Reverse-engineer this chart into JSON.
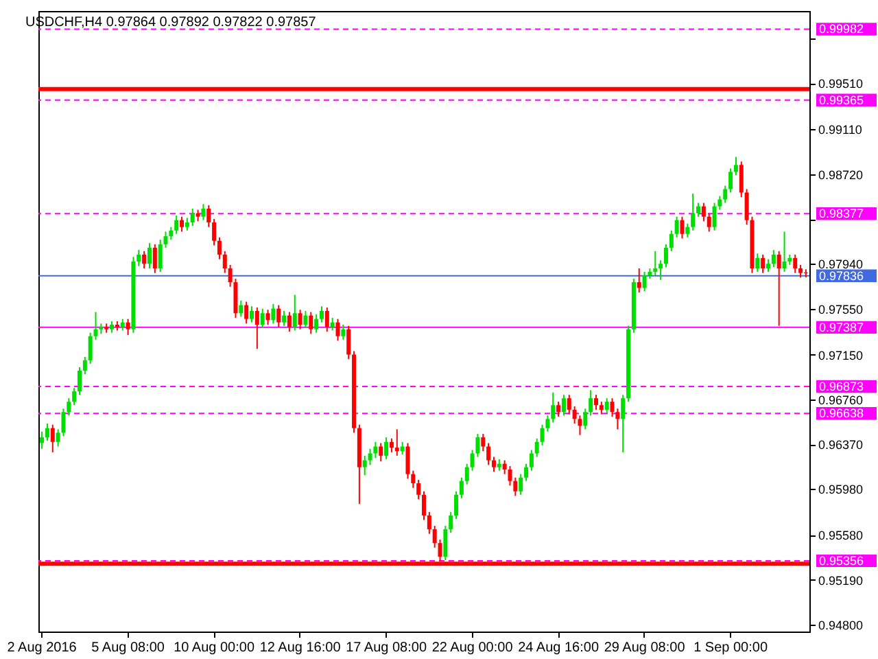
{
  "chart_data": {
    "type": "candlestick",
    "title": "USDCHF,H4 0.97864 0.97892 0.97822 0.97857",
    "categories": [
      "2 Aug 2016",
      null,
      null,
      null,
      null,
      null,
      null,
      null,
      null,
      null,
      null,
      null,
      null,
      null,
      null,
      null,
      "5 Aug 08:00",
      null,
      null,
      null,
      null,
      null,
      null,
      null,
      null,
      null,
      null,
      null,
      null,
      null,
      null,
      null,
      "10 Aug 00:00",
      null,
      null,
      null,
      null,
      null,
      null,
      null,
      null,
      null,
      null,
      null,
      null,
      null,
      null,
      null,
      "12 Aug 16:00",
      null,
      null,
      null,
      null,
      null,
      null,
      null,
      null,
      null,
      null,
      null,
      null,
      null,
      null,
      null,
      "17 Aug 08:00",
      null,
      null,
      null,
      null,
      null,
      null,
      null,
      null,
      null,
      null,
      null,
      null,
      null,
      null,
      null,
      "22 Aug 00:00",
      null,
      null,
      null,
      null,
      null,
      null,
      null,
      null,
      null,
      null,
      null,
      null,
      null,
      null,
      null,
      "24 Aug 16:00",
      null,
      null,
      null,
      null,
      null,
      null,
      null,
      null,
      null,
      null,
      null,
      null,
      null,
      null,
      null,
      "29 Aug 08:00",
      null,
      null,
      null,
      null,
      null,
      null,
      null,
      null,
      null,
      null,
      null,
      null,
      null,
      null,
      null,
      "1 Sep 00:00",
      null,
      null,
      null,
      null,
      null,
      null,
      null,
      null,
      null,
      null,
      null,
      null,
      null,
      null
    ],
    "ohlc": [
      [
        0.9638,
        0.9648,
        0.9633,
        0.9643
      ],
      [
        0.9643,
        0.9655,
        0.964,
        0.9651
      ],
      [
        0.9651,
        0.9654,
        0.963,
        0.9639
      ],
      [
        0.9639,
        0.965,
        0.9635,
        0.9647
      ],
      [
        0.9647,
        0.9668,
        0.9644,
        0.9665
      ],
      [
        0.9665,
        0.9677,
        0.9662,
        0.9674
      ],
      [
        0.9674,
        0.9686,
        0.9671,
        0.9683
      ],
      [
        0.9683,
        0.9704,
        0.968,
        0.9701
      ],
      [
        0.9701,
        0.9713,
        0.9698,
        0.971
      ],
      [
        0.971,
        0.9734,
        0.9707,
        0.9731
      ],
      [
        0.9731,
        0.9752,
        0.9728,
        0.9737
      ],
      [
        0.9737,
        0.9742,
        0.9733,
        0.9739
      ],
      [
        0.9739,
        0.9742,
        0.9734,
        0.9737
      ],
      [
        0.9737,
        0.9744,
        0.9734,
        0.9741
      ],
      [
        0.9741,
        0.9744,
        0.9736,
        0.9739
      ],
      [
        0.9739,
        0.9746,
        0.9736,
        0.9743
      ],
      [
        0.9743,
        0.9746,
        0.9732,
        0.9737
      ],
      [
        0.9737,
        0.98,
        0.9734,
        0.9796
      ],
      [
        0.9796,
        0.9806,
        0.9792,
        0.9802
      ],
      [
        0.9802,
        0.9805,
        0.979,
        0.9794
      ],
      [
        0.9794,
        0.9812,
        0.979,
        0.9808
      ],
      [
        0.9808,
        0.9811,
        0.9786,
        0.979
      ],
      [
        0.979,
        0.9815,
        0.9787,
        0.9811
      ],
      [
        0.9811,
        0.9822,
        0.9808,
        0.9818
      ],
      [
        0.9818,
        0.9826,
        0.9815,
        0.9823
      ],
      [
        0.9823,
        0.9836,
        0.982,
        0.9832
      ],
      [
        0.9832,
        0.9835,
        0.9822,
        0.9826
      ],
      [
        0.9826,
        0.9834,
        0.9823,
        0.983
      ],
      [
        0.983,
        0.9842,
        0.9827,
        0.9838
      ],
      [
        0.9838,
        0.9841,
        0.9831,
        0.9835
      ],
      [
        0.9835,
        0.9846,
        0.9832,
        0.9842
      ],
      [
        0.9842,
        0.9845,
        0.9826,
        0.983
      ],
      [
        0.983,
        0.9833,
        0.981,
        0.9814
      ],
      [
        0.9814,
        0.9817,
        0.9798,
        0.9802
      ],
      [
        0.9802,
        0.9805,
        0.9786,
        0.979
      ],
      [
        0.979,
        0.9793,
        0.9774,
        0.9778
      ],
      [
        0.9778,
        0.9781,
        0.9747,
        0.9751
      ],
      [
        0.9751,
        0.9762,
        0.9748,
        0.9758
      ],
      [
        0.9758,
        0.9761,
        0.9742,
        0.9746
      ],
      [
        0.9746,
        0.9757,
        0.9743,
        0.9753
      ],
      [
        0.9753,
        0.9756,
        0.972,
        0.9741
      ],
      [
        0.9741,
        0.9755,
        0.9738,
        0.9751
      ],
      [
        0.9751,
        0.9754,
        0.9741,
        0.9745
      ],
      [
        0.9745,
        0.9759,
        0.9742,
        0.9755
      ],
      [
        0.9755,
        0.9758,
        0.9739,
        0.9743
      ],
      [
        0.9743,
        0.9753,
        0.974,
        0.9749
      ],
      [
        0.9749,
        0.9752,
        0.9735,
        0.9739
      ],
      [
        0.9739,
        0.9767,
        0.9736,
        0.9751
      ],
      [
        0.9751,
        0.9754,
        0.9737,
        0.9741
      ],
      [
        0.9741,
        0.9753,
        0.9738,
        0.9749
      ],
      [
        0.9749,
        0.9752,
        0.9733,
        0.9737
      ],
      [
        0.9737,
        0.975,
        0.9734,
        0.9746
      ],
      [
        0.9746,
        0.9757,
        0.9743,
        0.9753
      ],
      [
        0.9753,
        0.9756,
        0.9735,
        0.9739
      ],
      [
        0.9739,
        0.9747,
        0.9736,
        0.9743
      ],
      [
        0.9743,
        0.9746,
        0.9727,
        0.9731
      ],
      [
        0.9731,
        0.9741,
        0.9728,
        0.9737
      ],
      [
        0.9737,
        0.974,
        0.9711,
        0.9715
      ],
      [
        0.9715,
        0.9718,
        0.9647,
        0.9651
      ],
      [
        0.9651,
        0.9654,
        0.9585,
        0.9617
      ],
      [
        0.9617,
        0.9627,
        0.961,
        0.9623
      ],
      [
        0.9623,
        0.9633,
        0.9619,
        0.9629
      ],
      [
        0.9629,
        0.9639,
        0.9625,
        0.9635
      ],
      [
        0.9635,
        0.9638,
        0.9622,
        0.9627
      ],
      [
        0.9627,
        0.9643,
        0.9624,
        0.9639
      ],
      [
        0.9639,
        0.9642,
        0.963,
        0.9634
      ],
      [
        0.9634,
        0.965,
        0.9627,
        0.9631
      ],
      [
        0.9631,
        0.9639,
        0.9628,
        0.9635
      ],
      [
        0.9635,
        0.9638,
        0.9607,
        0.9611
      ],
      [
        0.9611,
        0.9614,
        0.9599,
        0.9603
      ],
      [
        0.9603,
        0.9606,
        0.9589,
        0.9593
      ],
      [
        0.9593,
        0.9596,
        0.9571,
        0.9575
      ],
      [
        0.9575,
        0.9578,
        0.9559,
        0.9563
      ],
      [
        0.9563,
        0.9566,
        0.9547,
        0.9551
      ],
      [
        0.9551,
        0.9554,
        0.9535,
        0.9539
      ],
      [
        0.9539,
        0.9566,
        0.9536,
        0.9563
      ],
      [
        0.9563,
        0.9578,
        0.956,
        0.9575
      ],
      [
        0.9575,
        0.9596,
        0.9572,
        0.9593
      ],
      [
        0.9593,
        0.9608,
        0.959,
        0.9605
      ],
      [
        0.9605,
        0.962,
        0.9602,
        0.9617
      ],
      [
        0.9617,
        0.9632,
        0.9614,
        0.9629
      ],
      [
        0.9629,
        0.9646,
        0.9626,
        0.9643
      ],
      [
        0.9643,
        0.9646,
        0.9631,
        0.9635
      ],
      [
        0.9635,
        0.9638,
        0.9619,
        0.9623
      ],
      [
        0.9623,
        0.9626,
        0.9613,
        0.9617
      ],
      [
        0.9617,
        0.9624,
        0.9614,
        0.962
      ],
      [
        0.962,
        0.9623,
        0.9611,
        0.9615
      ],
      [
        0.9615,
        0.9618,
        0.9601,
        0.9605
      ],
      [
        0.9605,
        0.9608,
        0.9592,
        0.9596
      ],
      [
        0.9596,
        0.9611,
        0.9593,
        0.9608
      ],
      [
        0.9608,
        0.962,
        0.9605,
        0.9617
      ],
      [
        0.9617,
        0.9632,
        0.9614,
        0.9629
      ],
      [
        0.9629,
        0.9642,
        0.9626,
        0.9639
      ],
      [
        0.9639,
        0.9654,
        0.9636,
        0.9651
      ],
      [
        0.9651,
        0.9662,
        0.9648,
        0.9659
      ],
      [
        0.9659,
        0.9682,
        0.9656,
        0.9671
      ],
      [
        0.9671,
        0.9674,
        0.9661,
        0.9665
      ],
      [
        0.9665,
        0.968,
        0.9662,
        0.9677
      ],
      [
        0.9677,
        0.968,
        0.9663,
        0.9667
      ],
      [
        0.9667,
        0.967,
        0.9655,
        0.9659
      ],
      [
        0.9659,
        0.9662,
        0.9645,
        0.9653
      ],
      [
        0.9653,
        0.9668,
        0.965,
        0.9665
      ],
      [
        0.9665,
        0.9684,
        0.9662,
        0.9677
      ],
      [
        0.9677,
        0.968,
        0.9667,
        0.9671
      ],
      [
        0.9671,
        0.9674,
        0.9663,
        0.9667
      ],
      [
        0.9667,
        0.9677,
        0.9664,
        0.9674
      ],
      [
        0.9674,
        0.9677,
        0.9661,
        0.9665
      ],
      [
        0.9665,
        0.9668,
        0.965,
        0.9659
      ],
      [
        0.9659,
        0.968,
        0.963,
        0.9677
      ],
      [
        0.9677,
        0.974,
        0.9674,
        0.9737
      ],
      [
        0.9737,
        0.9781,
        0.9734,
        0.9778
      ],
      [
        0.9778,
        0.979,
        0.9769,
        0.9773
      ],
      [
        0.9773,
        0.9787,
        0.977,
        0.9784
      ],
      [
        0.9784,
        0.979,
        0.9781,
        0.9787
      ],
      [
        0.9787,
        0.9805,
        0.9784,
        0.979
      ],
      [
        0.979,
        0.9797,
        0.978,
        0.9794
      ],
      [
        0.9794,
        0.9811,
        0.9791,
        0.9808
      ],
      [
        0.9808,
        0.9823,
        0.9805,
        0.982
      ],
      [
        0.982,
        0.9835,
        0.9817,
        0.9832
      ],
      [
        0.9832,
        0.9835,
        0.9816,
        0.982
      ],
      [
        0.982,
        0.9829,
        0.9817,
        0.9826
      ],
      [
        0.9826,
        0.9855,
        0.9823,
        0.9838
      ],
      [
        0.9838,
        0.9847,
        0.9835,
        0.9844
      ],
      [
        0.9844,
        0.9847,
        0.9831,
        0.9835
      ],
      [
        0.9835,
        0.9838,
        0.9822,
        0.9826
      ],
      [
        0.9826,
        0.9847,
        0.9823,
        0.9844
      ],
      [
        0.9844,
        0.9853,
        0.9841,
        0.985
      ],
      [
        0.985,
        0.9862,
        0.9847,
        0.9859
      ],
      [
        0.9859,
        0.9877,
        0.9856,
        0.9874
      ],
      [
        0.9874,
        0.9887,
        0.9871,
        0.988
      ],
      [
        0.988,
        0.9883,
        0.9852,
        0.9856
      ],
      [
        0.9856,
        0.9859,
        0.9828,
        0.9832
      ],
      [
        0.9832,
        0.9835,
        0.9786,
        0.979
      ],
      [
        0.979,
        0.9803,
        0.9787,
        0.9799
      ],
      [
        0.9799,
        0.9802,
        0.9786,
        0.979
      ],
      [
        0.979,
        0.9798,
        0.9787,
        0.9794
      ],
      [
        0.9794,
        0.9806,
        0.9791,
        0.9802
      ],
      [
        0.9802,
        0.9805,
        0.974,
        0.979
      ],
      [
        0.979,
        0.9822,
        0.9787,
        0.9796
      ],
      [
        0.9796,
        0.9802,
        0.9793,
        0.9799
      ],
      [
        0.9799,
        0.9802,
        0.9786,
        0.979
      ],
      [
        0.979,
        0.9793,
        0.9782,
        0.9786
      ],
      [
        0.97864,
        0.97892,
        0.97822,
        0.97857
      ]
    ],
    "colors": [
      "#00dd00",
      "#00dd00",
      "#ff0000",
      "#00dd00",
      "#00dd00",
      "#00dd00",
      "#00dd00",
      "#00dd00",
      "#00dd00",
      "#00dd00",
      "#00dd00",
      "#00dd00",
      "#ff0000",
      "#00dd00",
      "#ff0000",
      "#00dd00",
      "#ff0000",
      "#00dd00",
      "#00dd00",
      "#ff0000",
      "#00dd00",
      "#ff0000",
      "#00dd00",
      "#00dd00",
      "#00dd00",
      "#00dd00",
      "#ff0000",
      "#00dd00",
      "#00dd00",
      "#ff0000",
      "#00dd00",
      "#ff0000",
      "#ff0000",
      "#ff0000",
      "#ff0000",
      "#ff0000",
      "#ff0000",
      "#00dd00",
      "#ff0000",
      "#00dd00",
      "#ff0000",
      "#00dd00",
      "#ff0000",
      "#00dd00",
      "#ff0000",
      "#00dd00",
      "#ff0000",
      "#00dd00",
      "#ff0000",
      "#00dd00",
      "#ff0000",
      "#00dd00",
      "#00dd00",
      "#ff0000",
      "#00dd00",
      "#ff0000",
      "#00dd00",
      "#ff0000",
      "#ff0000",
      "#ff0000",
      "#00dd00",
      "#00dd00",
      "#00dd00",
      "#ff0000",
      "#00dd00",
      "#ff0000",
      "#ff0000",
      "#00dd00",
      "#ff0000",
      "#ff0000",
      "#ff0000",
      "#ff0000",
      "#ff0000",
      "#ff0000",
      "#ff0000",
      "#00dd00",
      "#00dd00",
      "#00dd00",
      "#00dd00",
      "#00dd00",
      "#00dd00",
      "#00dd00",
      "#ff0000",
      "#ff0000",
      "#ff0000",
      "#00dd00",
      "#ff0000",
      "#ff0000",
      "#ff0000",
      "#00dd00",
      "#00dd00",
      "#00dd00",
      "#00dd00",
      "#00dd00",
      "#00dd00",
      "#00dd00",
      "#ff0000",
      "#00dd00",
      "#ff0000",
      "#ff0000",
      "#ff0000",
      "#00dd00",
      "#00dd00",
      "#ff0000",
      "#ff0000",
      "#00dd00",
      "#ff0000",
      "#ff0000",
      "#00dd00",
      "#00dd00",
      "#00dd00",
      "#ff0000",
      "#00dd00",
      "#00dd00",
      "#00dd00",
      "#00dd00",
      "#00dd00",
      "#00dd00",
      "#00dd00",
      "#ff0000",
      "#00dd00",
      "#00dd00",
      "#00dd00",
      "#ff0000",
      "#ff0000",
      "#00dd00",
      "#00dd00",
      "#00dd00",
      "#00dd00",
      "#00dd00",
      "#ff0000",
      "#ff0000",
      "#ff0000",
      "#00dd00",
      "#ff0000",
      "#00dd00",
      "#00dd00",
      "#ff0000",
      "#00dd00",
      "#00dd00",
      "#ff0000",
      "#ff0000",
      "#ff0000"
    ],
    "ylim": [
      0.9474,
      1.0014
    ],
    "yticks": [
      {
        "value": 0.999,
        "label": null
      },
      {
        "value": 0.9951,
        "label": "0.99510"
      },
      {
        "value": 0.9911,
        "label": "0.99110"
      },
      {
        "value": 0.9872,
        "label": "0.98720"
      },
      {
        "value": 0.9833,
        "label": null
      },
      {
        "value": 0.9794,
        "label": "0.97940"
      },
      {
        "value": 0.9755,
        "label": "0.97550"
      },
      {
        "value": 0.9715,
        "label": "0.97150"
      },
      {
        "value": 0.9676,
        "label": "0.96760"
      },
      {
        "value": 0.9637,
        "label": "0.96370"
      },
      {
        "value": 0.9598,
        "label": "0.95980"
      },
      {
        "value": 0.9558,
        "label": "0.95580"
      },
      {
        "value": 0.9519,
        "label": "0.95190"
      },
      {
        "value": 0.948,
        "label": "0.94800"
      }
    ],
    "ref_lines": [
      {
        "axis": "y",
        "value": 0.9946,
        "color": "#ff0000",
        "line_style": "solid"
      },
      {
        "axis": "y",
        "value": 0.9533,
        "color": "#ff0000",
        "line_style": "solid"
      },
      {
        "axis": "y",
        "value": 0.99982,
        "label": "0.99982",
        "color": "#ff00ff",
        "line_style": "dashed"
      },
      {
        "axis": "y",
        "value": 0.99365,
        "label": "0.99365",
        "color": "#ff00ff",
        "line_style": "dashed"
      },
      {
        "axis": "y",
        "value": 0.98377,
        "label": "0.98377",
        "color": "#ff00ff",
        "line_style": "dashed"
      },
      {
        "axis": "y",
        "value": 0.97836,
        "label": "0.97836",
        "color": "#4169e1",
        "line_style": "solid"
      },
      {
        "axis": "y",
        "value": 0.97387,
        "label": "0.97387",
        "color": "#ff00ff",
        "line_style": "solid"
      },
      {
        "axis": "y",
        "value": 0.96873,
        "label": "0.96873",
        "color": "#ff00ff",
        "line_style": "dashed"
      },
      {
        "axis": "y",
        "value": 0.96638,
        "label": "0.96638",
        "color": "#ff00ff",
        "line_style": "dashed"
      },
      {
        "axis": "y",
        "value": 0.95356,
        "label": "0.95356",
        "color": "#ff00ff",
        "line_style": "dashed"
      }
    ]
  }
}
